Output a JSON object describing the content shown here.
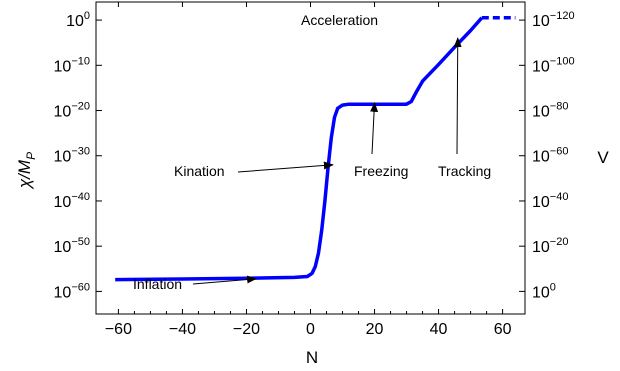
{
  "chart_data": {
    "type": "line",
    "title": "",
    "xlabel": "N",
    "ylabel": "χ/M",
    "ylabel_subscript": "P",
    "y2label": "V",
    "xlim": [
      -67,
      67
    ],
    "ylim_log10": [
      -65,
      4
    ],
    "y2lim_log10": [
      -10,
      128
    ],
    "y2_reversed": true,
    "grid": false,
    "x_ticks": [
      {
        "value": -60,
        "label": "−60"
      },
      {
        "value": -40,
        "label": "−40"
      },
      {
        "value": -20,
        "label": "−20"
      },
      {
        "value": 0,
        "label": "0"
      },
      {
        "value": 20,
        "label": "20"
      },
      {
        "value": 40,
        "label": "40"
      },
      {
        "value": 60,
        "label": "60"
      }
    ],
    "y_ticks": [
      {
        "exp": 0,
        "base": "10",
        "sup": "0"
      },
      {
        "exp": -10,
        "base": "10",
        "sup": "−10"
      },
      {
        "exp": -20,
        "base": "10",
        "sup": "−20"
      },
      {
        "exp": -30,
        "base": "10",
        "sup": "−30"
      },
      {
        "exp": -40,
        "base": "10",
        "sup": "−40"
      },
      {
        "exp": -50,
        "base": "10",
        "sup": "−50"
      },
      {
        "exp": -60,
        "base": "10",
        "sup": "−60"
      }
    ],
    "y2_ticks": [
      {
        "exp": 120,
        "base": "10",
        "sup": "−120"
      },
      {
        "exp": 100,
        "base": "10",
        "sup": "−100"
      },
      {
        "exp": 80,
        "base": "10",
        "sup": "−80"
      },
      {
        "exp": 60,
        "base": "10",
        "sup": "−60"
      },
      {
        "exp": 40,
        "base": "10",
        "sup": "−40"
      },
      {
        "exp": 20,
        "base": "10",
        "sup": "−20"
      },
      {
        "exp": 0,
        "base": "10",
        "sup": "0"
      }
    ],
    "series": [
      {
        "color": "#0000ff",
        "style": "solid",
        "points": [
          [
            -61,
            -57.4
          ],
          [
            -40,
            -57.25
          ],
          [
            -20,
            -57.1
          ],
          [
            -5,
            -56.9
          ],
          [
            -1,
            -56.7
          ],
          [
            0.5,
            -56.0
          ],
          [
            1.5,
            -54.5
          ],
          [
            2.5,
            -51.5
          ],
          [
            3.5,
            -46.5
          ],
          [
            4.5,
            -40.0
          ],
          [
            5.5,
            -32.5
          ],
          [
            6.5,
            -26.0
          ],
          [
            7.5,
            -21.5
          ],
          [
            8.5,
            -19.5
          ],
          [
            10,
            -18.8
          ],
          [
            12,
            -18.6
          ],
          [
            20,
            -18.6
          ],
          [
            30,
            -18.6
          ],
          [
            31.5,
            -18.0
          ],
          [
            33,
            -16.0
          ],
          [
            35,
            -13.5
          ],
          [
            40,
            -9.8
          ],
          [
            45,
            -6.0
          ],
          [
            50,
            -2.3
          ],
          [
            53.5,
            0.5
          ]
        ]
      },
      {
        "color": "#0000ff",
        "style": "dashed",
        "points": [
          [
            53.5,
            0.5
          ],
          [
            64,
            0.5
          ]
        ]
      }
    ],
    "annotations": [
      {
        "text": "Acceleration",
        "arrow": false
      },
      {
        "text": "Kination",
        "arrow_to": [
          7,
          -32
        ]
      },
      {
        "text": "Freezing",
        "arrow_to": [
          20,
          -18.3
        ]
      },
      {
        "text": "Tracking",
        "arrow_to": [
          46,
          -4
        ]
      },
      {
        "text": "Inflation",
        "arrow_to": [
          -17,
          -57.2
        ]
      }
    ]
  }
}
